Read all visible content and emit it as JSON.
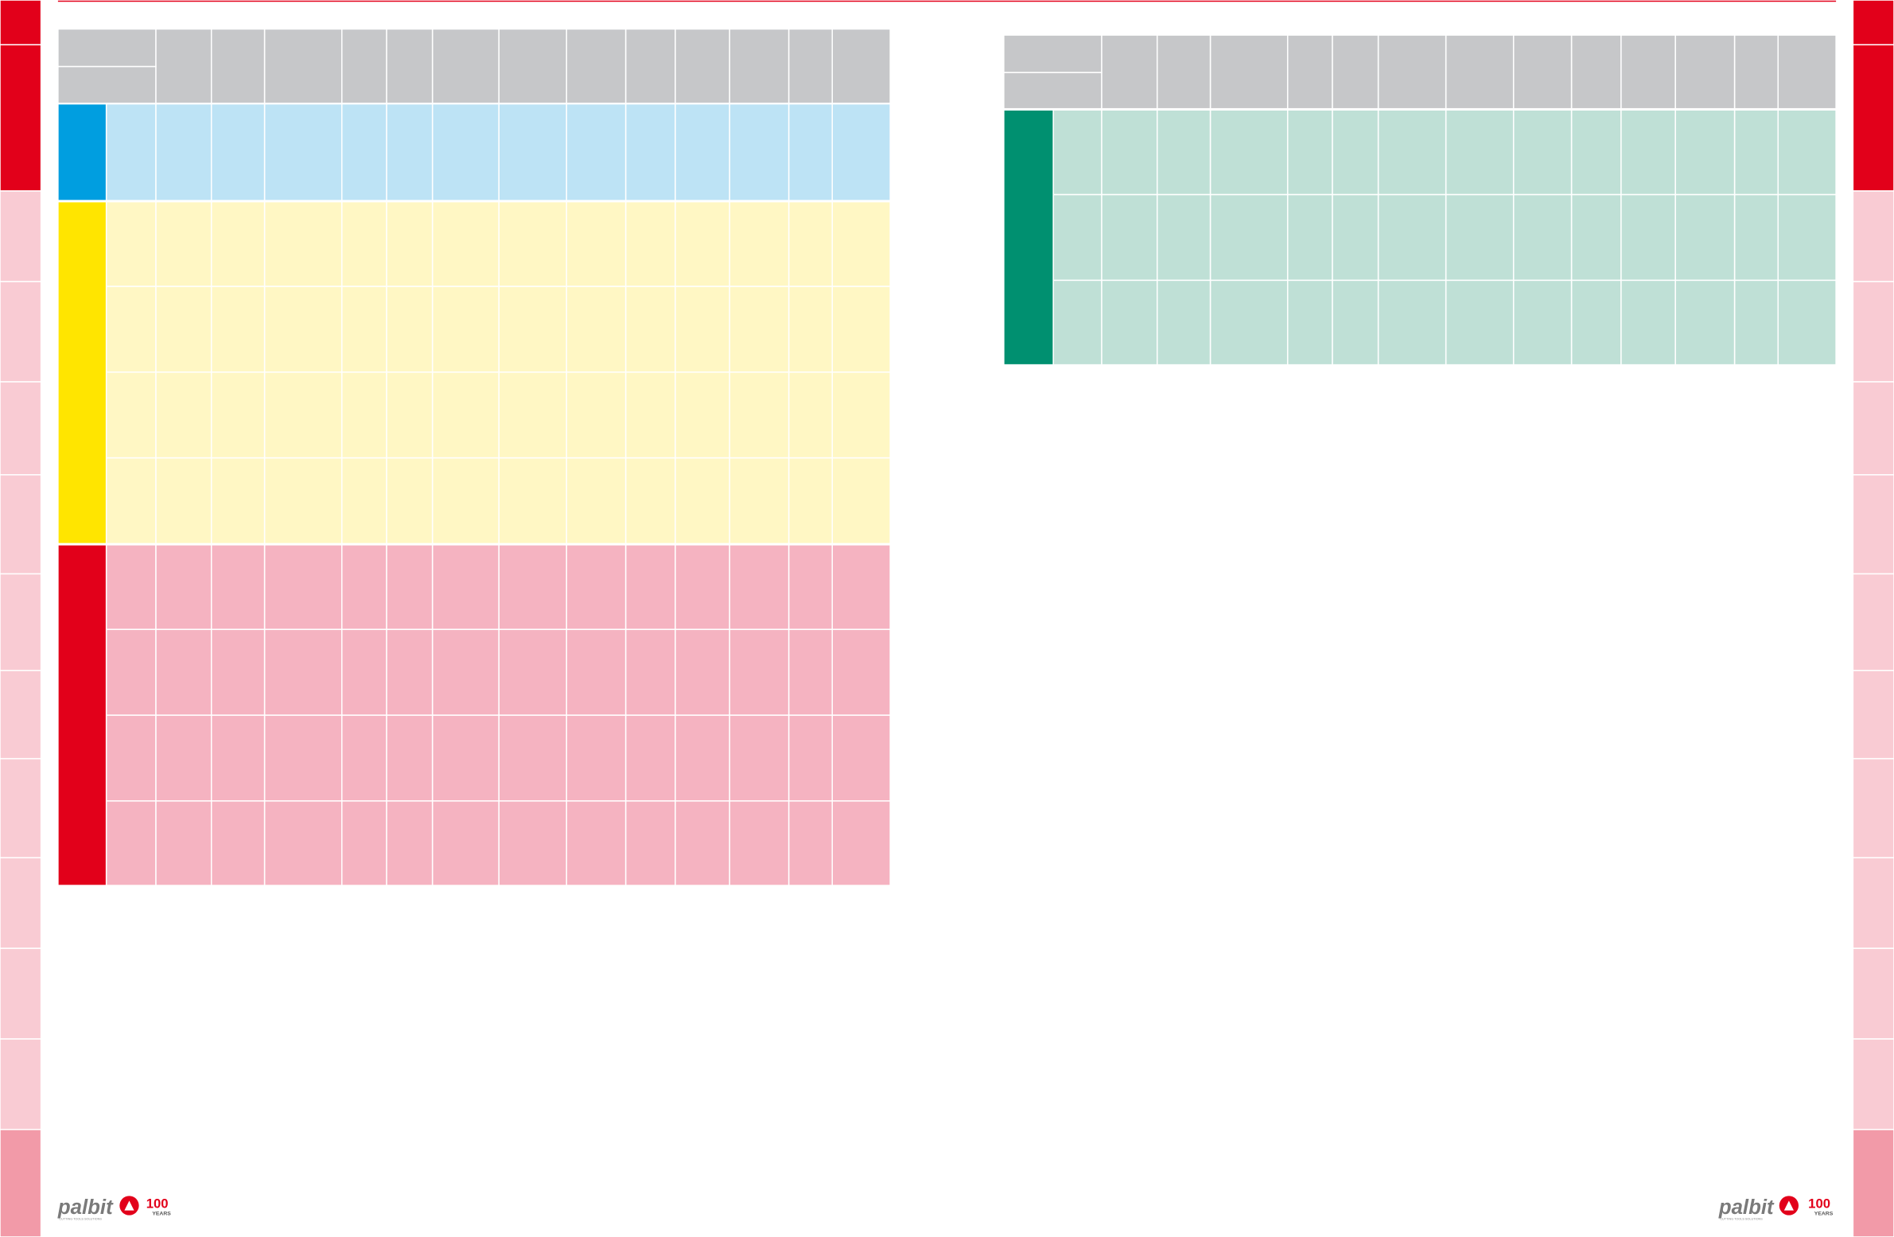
{
  "footer": {
    "left_logo": {
      "brand": "palbit",
      "tagline": "CUTTING TOOLS SOLUTIONS",
      "anniversary": "100",
      "anniversary_label": "YEARS"
    },
    "right_logo": {
      "brand": "palbit",
      "tagline": "CUTTING TOOLS SOLUTIONS",
      "anniversary": "100",
      "anniversary_label": "YEARS"
    }
  }
}
